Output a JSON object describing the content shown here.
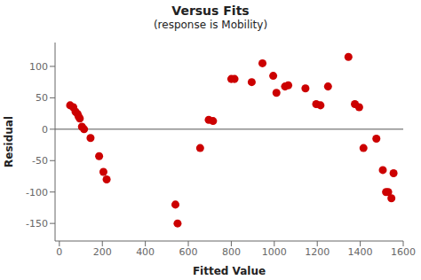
{
  "chart_data": {
    "type": "scatter",
    "title": "Versus Fits",
    "subtitle": "(response is Mobility)",
    "xlabel": "Fitted Value",
    "ylabel": "Residual",
    "xlim": [
      -20,
      1600
    ],
    "ylim": [
      -178,
      138
    ],
    "xticks": [
      0,
      200,
      400,
      600,
      800,
      1000,
      1200,
      1400,
      1600
    ],
    "yticks": [
      -150,
      -100,
      -50,
      0,
      50,
      100
    ],
    "grid": false,
    "color": "#cc0000",
    "x": [
      50,
      65,
      75,
      85,
      90,
      95,
      105,
      115,
      145,
      185,
      205,
      220,
      540,
      550,
      655,
      695,
      715,
      800,
      815,
      895,
      945,
      995,
      1010,
      1050,
      1065,
      1145,
      1195,
      1215,
      1250,
      1345,
      1375,
      1395,
      1415,
      1475,
      1505,
      1520,
      1530,
      1545,
      1555
    ],
    "values": [
      38,
      35,
      28,
      24,
      20,
      17,
      4,
      0,
      -14,
      -43,
      -68,
      -80,
      -120,
      -150,
      -30,
      15,
      13,
      80,
      80,
      75,
      105,
      85,
      58,
      68,
      70,
      65,
      40,
      38,
      68,
      115,
      40,
      35,
      -30,
      -15,
      -65,
      -100,
      -100,
      -110,
      -70
    ]
  }
}
